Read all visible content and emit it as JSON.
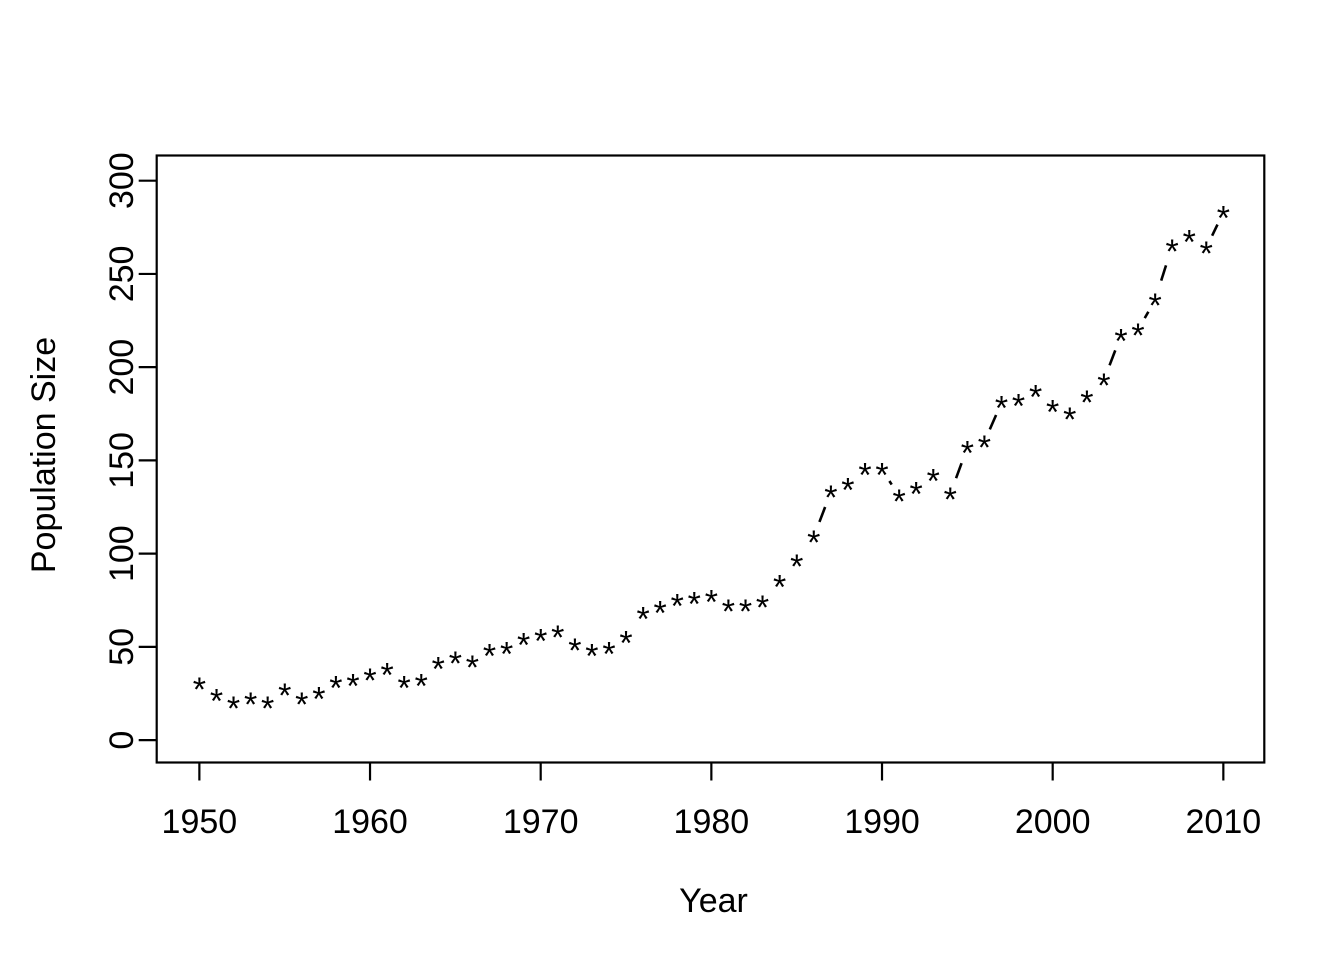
{
  "chart_data": {
    "type": "scatter",
    "subtype": "points-with-dashed-line-segments (R plot type='b', lty=2, pch='*')",
    "title": "",
    "xlabel": "Year",
    "ylabel": "Population Size",
    "marker": "*",
    "line_style": "dashed",
    "foreground_color": "#000000",
    "background_color": "#ffffff",
    "grid": false,
    "legend": false,
    "x_ticks": [
      1950,
      1960,
      1970,
      1980,
      1990,
      2000,
      2010
    ],
    "y_ticks": [
      0,
      50,
      100,
      150,
      200,
      250,
      300
    ],
    "xlim": [
      1947.5,
      2012.4
    ],
    "ylim": [
      -12,
      313.5
    ],
    "x": [
      1950,
      1951,
      1952,
      1953,
      1954,
      1955,
      1956,
      1957,
      1958,
      1959,
      1960,
      1961,
      1962,
      1963,
      1964,
      1965,
      1966,
      1967,
      1968,
      1969,
      1970,
      1971,
      1972,
      1973,
      1974,
      1975,
      1976,
      1977,
      1978,
      1979,
      1980,
      1981,
      1982,
      1983,
      1984,
      1985,
      1986,
      1987,
      1988,
      1989,
      1990,
      1991,
      1992,
      1993,
      1994,
      1995,
      1996,
      1997,
      1998,
      1999,
      2000,
      2001,
      2002,
      2003,
      2004,
      2005,
      2006,
      2007,
      2008,
      2009,
      2010
    ],
    "values": [
      30,
      24,
      20,
      22,
      20,
      27,
      22,
      25,
      31,
      32,
      35,
      38,
      31,
      32,
      41,
      44,
      42,
      48,
      49,
      54,
      56,
      58,
      51,
      48,
      49,
      55,
      68,
      71,
      75,
      76,
      77,
      72,
      72,
      74,
      85,
      96,
      109,
      133,
      137,
      145,
      145,
      131,
      135,
      142,
      132,
      157,
      160,
      181,
      182,
      187,
      179,
      175,
      184,
      193,
      217,
      220,
      236,
      265,
      270,
      264,
      283
    ]
  }
}
